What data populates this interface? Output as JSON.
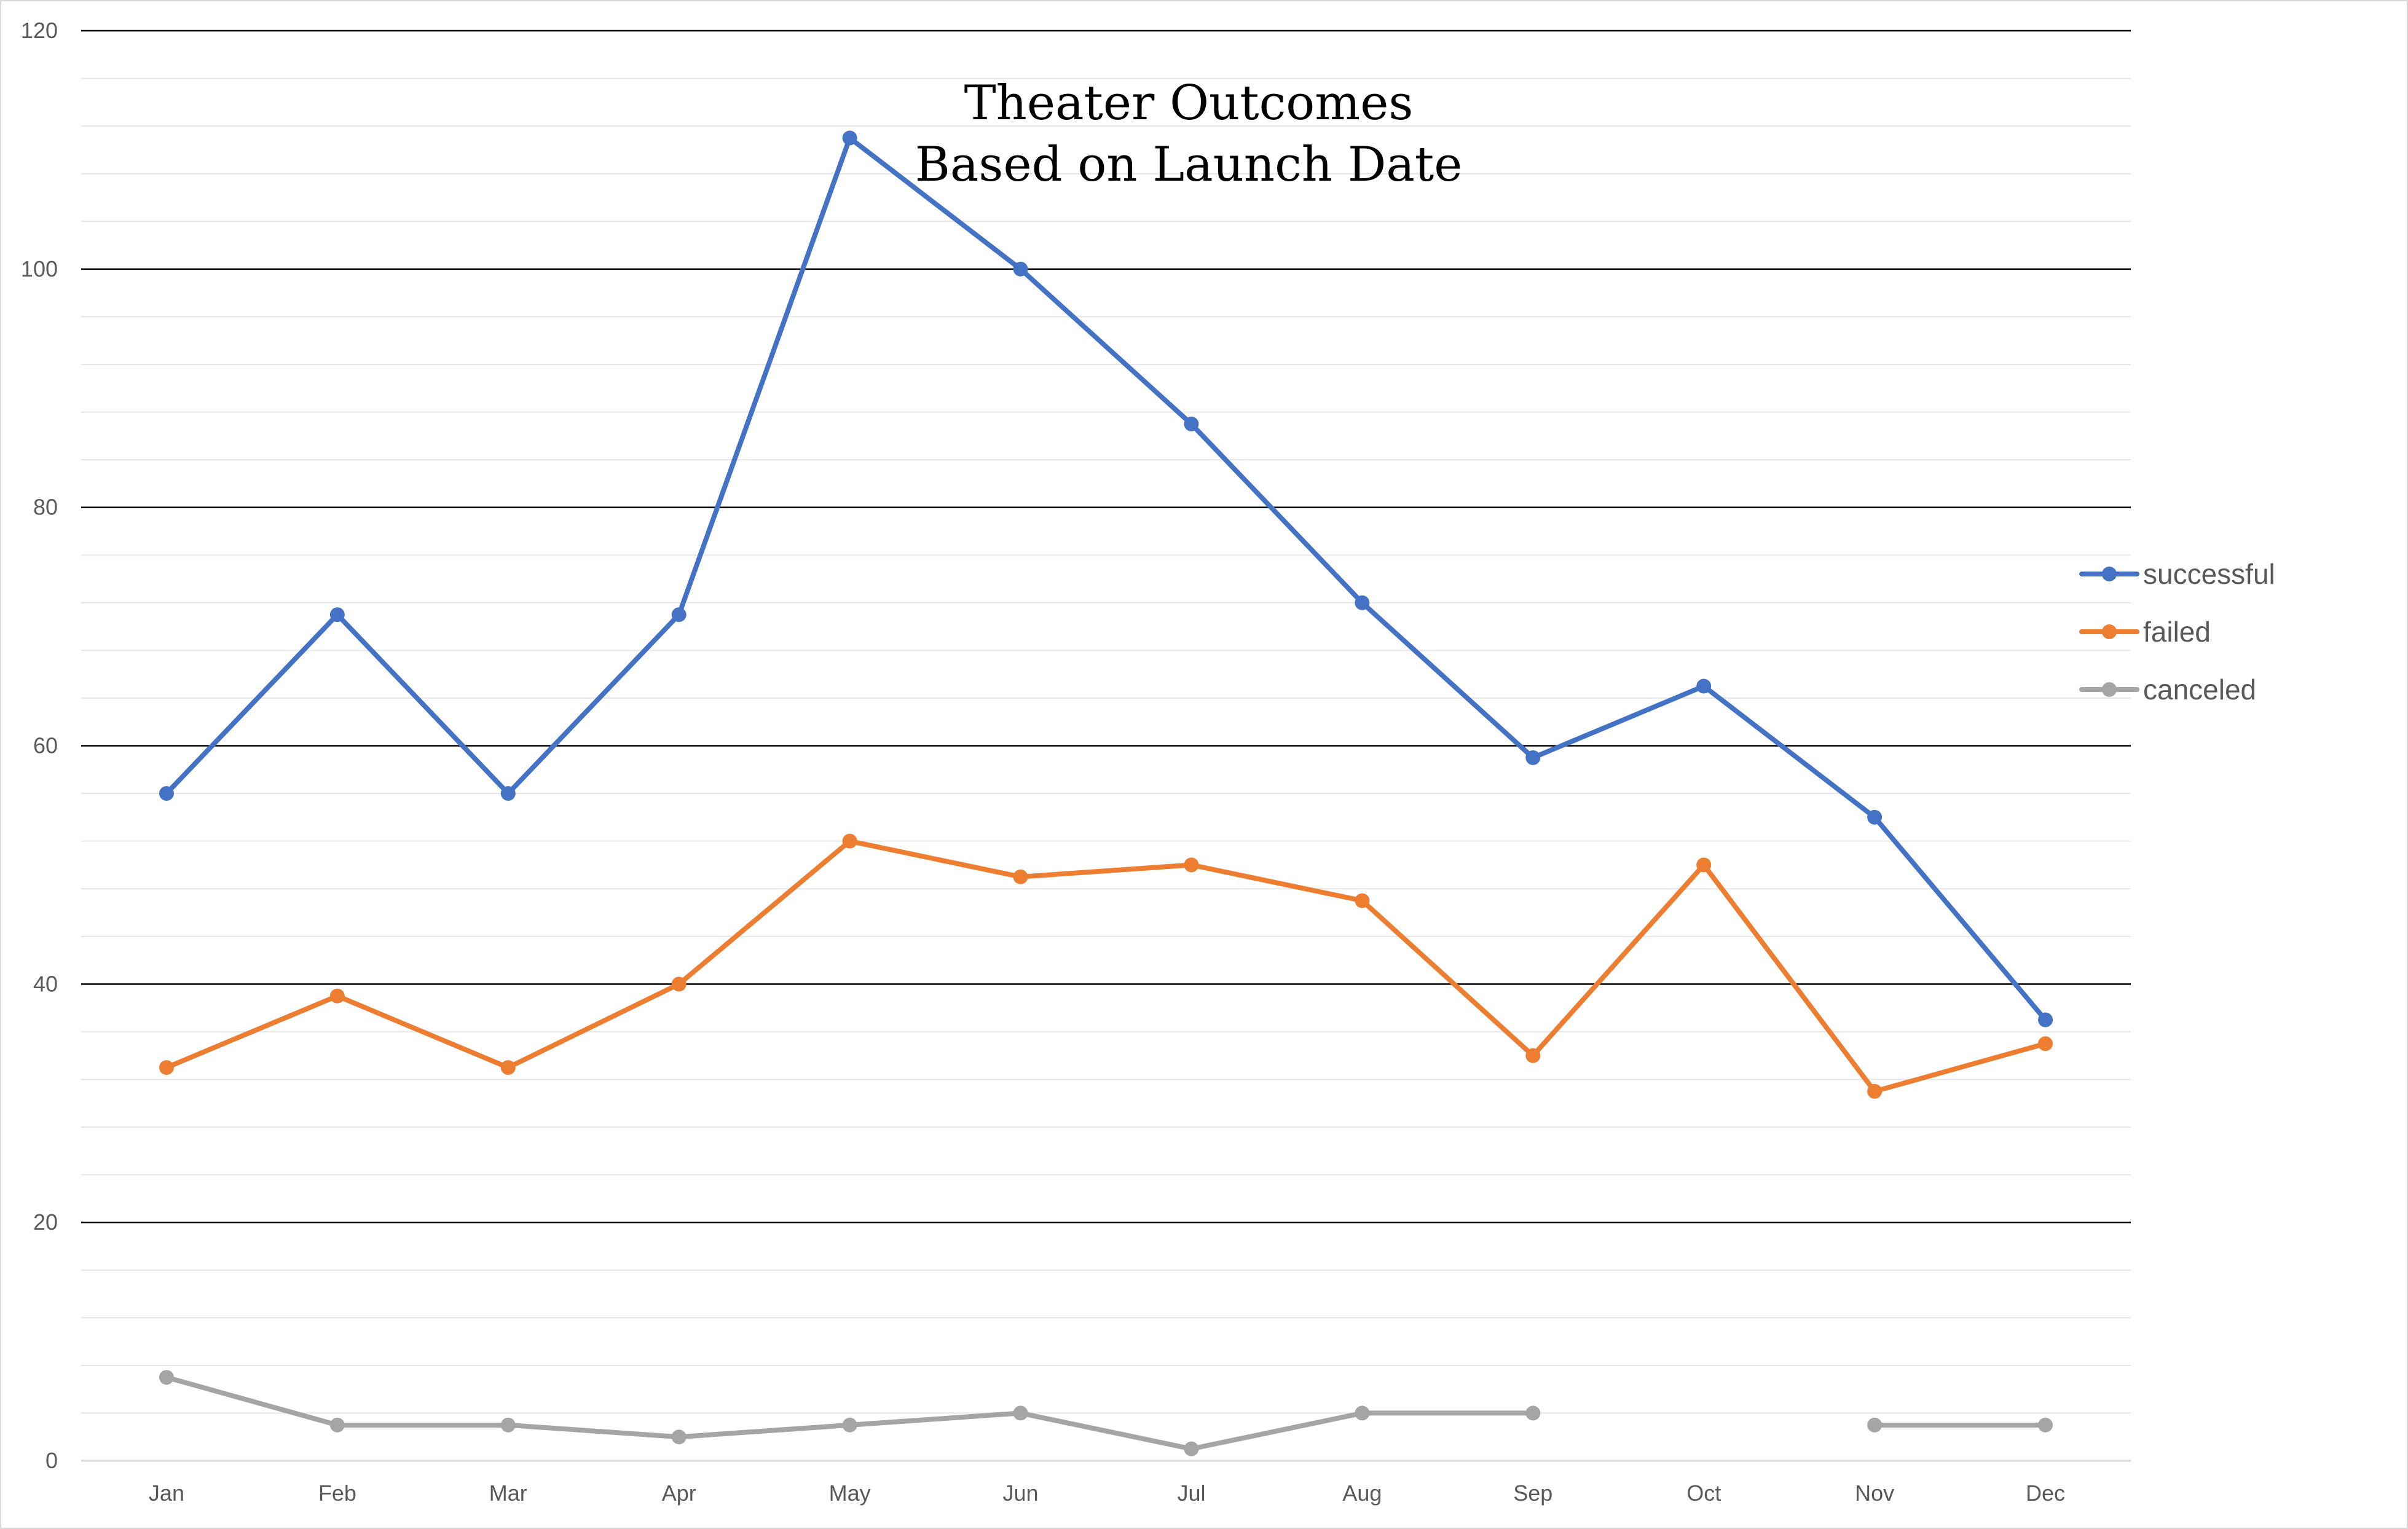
{
  "chart_data": {
    "type": "line",
    "title": [
      "Theater Outcomes",
      "Based on Launch Date"
    ],
    "xlabel": "",
    "ylabel": "",
    "categories": [
      "Jan",
      "Feb",
      "Mar",
      "Apr",
      "May",
      "Jun",
      "Jul",
      "Aug",
      "Sep",
      "Oct",
      "Nov",
      "Dec"
    ],
    "ylim": [
      0,
      120
    ],
    "y_major_ticks": [
      0,
      20,
      40,
      60,
      80,
      100,
      120
    ],
    "y_minor_step": 4,
    "grid": true,
    "legend_position": "right",
    "series": [
      {
        "name": "successful",
        "color": "#4472C4",
        "values": [
          56,
          71,
          56,
          71,
          111,
          100,
          87,
          72,
          59,
          65,
          54,
          37
        ]
      },
      {
        "name": "failed",
        "color": "#ED7D31",
        "values": [
          33,
          39,
          33,
          40,
          52,
          49,
          50,
          47,
          34,
          50,
          31,
          35
        ]
      },
      {
        "name": "canceled",
        "color": "#A5A5A5",
        "values": [
          7,
          3,
          3,
          2,
          3,
          4,
          1,
          4,
          4,
          null,
          3,
          3
        ]
      }
    ]
  }
}
